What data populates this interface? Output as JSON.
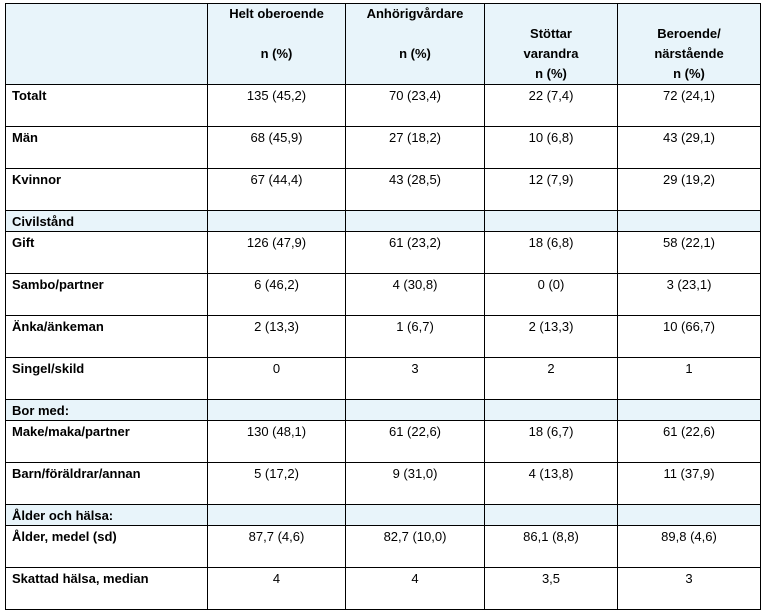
{
  "header": {
    "col1": [
      "Helt oberoende",
      "",
      "n (%)"
    ],
    "col2": [
      "Anhörigvårdare",
      "",
      "n (%)"
    ],
    "col3": [
      "",
      "Stöttar",
      "varandra",
      "n (%)"
    ],
    "col4": [
      "",
      "Beroende/",
      "närstående",
      "n (%)"
    ]
  },
  "rows": [
    {
      "label": "Totalt",
      "values": [
        "135 (45,2)",
        "70 (23,4)",
        "22 (7,4)",
        "72 (24,1)"
      ]
    },
    {
      "label": "Män",
      "values": [
        "68 (45,9)",
        "27 (18,2)",
        "10 (6,8)",
        "43 (29,1)"
      ]
    },
    {
      "label": "Kvinnor",
      "values": [
        "67 (44,4)",
        "43 (28,5)",
        "12 (7,9)",
        "29 (19,2)"
      ]
    },
    {
      "section": "Civilstånd"
    },
    {
      "label": "Gift",
      "values": [
        "126 (47,9)",
        "61 (23,2)",
        "18 (6,8)",
        "58 (22,1)"
      ]
    },
    {
      "label": "Sambo/partner",
      "values": [
        "6 (46,2)",
        "4 (30,8)",
        "0 (0)",
        "3 (23,1)"
      ]
    },
    {
      "label": "Änka/änkeman",
      "values": [
        "2 (13,3)",
        "1 (6,7)",
        "2 (13,3)",
        "10 (66,7)"
      ]
    },
    {
      "label": "Singel/skild",
      "values": [
        "0",
        "3",
        "2",
        "1"
      ]
    },
    {
      "section": "Bor med:"
    },
    {
      "label": "Make/maka/partner",
      "values": [
        "130 (48,1)",
        "61 (22,6)",
        "18 (6,7)",
        "61 (22,6)"
      ]
    },
    {
      "label": "Barn/föräldrar/annan",
      "values": [
        "5 (17,2)",
        "9 (31,0)",
        "4 (13,8)",
        "11 (37,9)"
      ]
    },
    {
      "section": "Ålder och hälsa:"
    },
    {
      "label": "Ålder, medel (sd)",
      "values": [
        "87,7 (4,6)",
        "82,7 (10,0)",
        "86,1 (8,8)",
        "89,8 (4,6)"
      ]
    },
    {
      "label": "Skattad hälsa, median",
      "values": [
        "4",
        "4",
        "3,5",
        "3"
      ]
    }
  ],
  "colors": {
    "header_bg": "#e8f4fa",
    "border": "#000000"
  }
}
